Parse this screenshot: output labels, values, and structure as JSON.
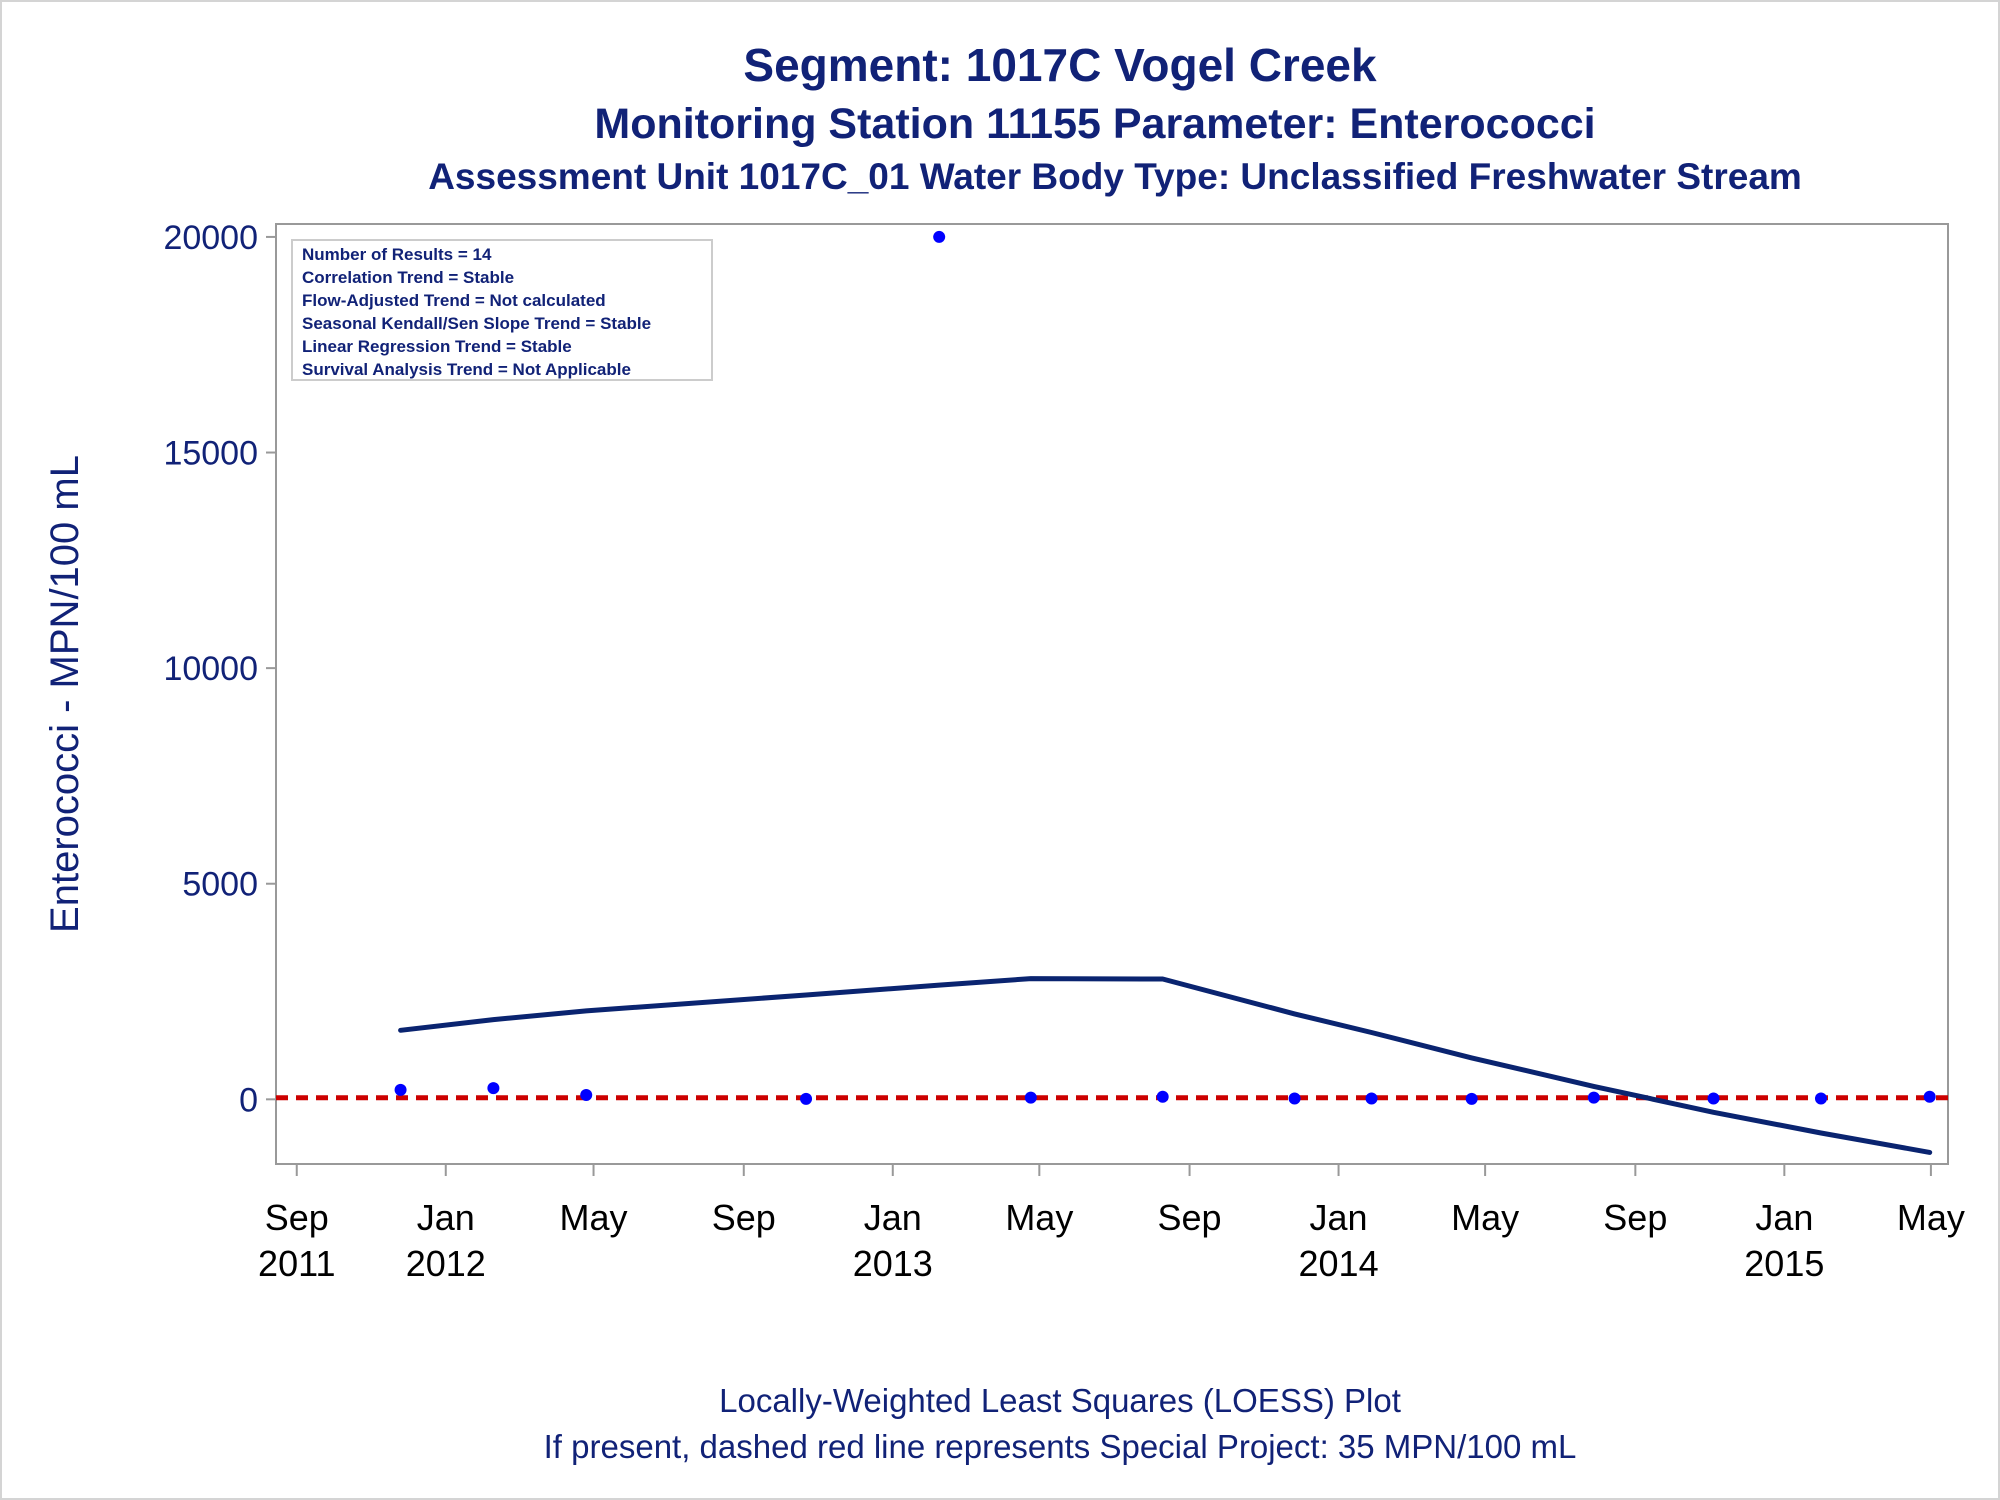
{
  "title": "Segment: 1017C  Vogel Creek",
  "subtitle": "Monitoring Station 11155 Parameter: Enterococci",
  "subtitle2": "Assessment Unit 1017C_01   Water Body Type: Unclassified Freshwater Stream",
  "stats": [
    "Number of Results = 14",
    "Correlation Trend = Stable",
    "Flow-Adjusted Trend = Not calculated",
    "Seasonal Kendall/Sen Slope Trend = Stable",
    "Linear Regression Trend = Stable",
    "Survival Analysis Trend = Not Applicable"
  ],
  "footer": {
    "line1": "Locally-Weighted Least Squares (LOESS) Plot",
    "line2": "If present, dashed red line represents Special Project: 35 MPN/100 mL"
  },
  "chart_data": {
    "type": "scatter",
    "ylabel": "Enterococci - MPN/100 mL",
    "ylim": [
      -1500,
      20300
    ],
    "yticks": [
      0,
      5000,
      10000,
      15000,
      20000
    ],
    "xlim": [
      "2011-08-15",
      "2015-05-15"
    ],
    "xticks": [
      {
        "date": "2011-09-01",
        "month": "Sep",
        "year": "2011"
      },
      {
        "date": "2012-01-01",
        "month": "Jan",
        "year": "2012"
      },
      {
        "date": "2012-05-01",
        "month": "May",
        "year": ""
      },
      {
        "date": "2012-09-01",
        "month": "Sep",
        "year": ""
      },
      {
        "date": "2013-01-01",
        "month": "Jan",
        "year": "2013"
      },
      {
        "date": "2013-05-01",
        "month": "May",
        "year": ""
      },
      {
        "date": "2013-09-01",
        "month": "Sep",
        "year": ""
      },
      {
        "date": "2014-01-01",
        "month": "Jan",
        "year": "2014"
      },
      {
        "date": "2014-05-01",
        "month": "May",
        "year": ""
      },
      {
        "date": "2014-09-01",
        "month": "Sep",
        "year": ""
      },
      {
        "date": "2015-01-01",
        "month": "Jan",
        "year": "2015"
      },
      {
        "date": "2015-05-01",
        "month": "May",
        "year": ""
      }
    ],
    "points": [
      {
        "x": "2011-11-25",
        "y": 220
      },
      {
        "x": "2012-02-09",
        "y": 260
      },
      {
        "x": "2012-04-25",
        "y": 100
      },
      {
        "x": "2012-10-22",
        "y": 10
      },
      {
        "x": "2013-02-08",
        "y": 20000
      },
      {
        "x": "2013-04-24",
        "y": 40
      },
      {
        "x": "2013-08-10",
        "y": 60
      },
      {
        "x": "2013-11-26",
        "y": 20
      },
      {
        "x": "2014-01-28",
        "y": 20
      },
      {
        "x": "2014-04-20",
        "y": 10
      },
      {
        "x": "2014-07-29",
        "y": 40
      },
      {
        "x": "2014-11-04",
        "y": 20
      },
      {
        "x": "2015-01-31",
        "y": 20
      },
      {
        "x": "2015-04-30",
        "y": 60
      }
    ],
    "loess": [
      {
        "x": "2011-11-25",
        "y": 1600
      },
      {
        "x": "2012-02-09",
        "y": 1850
      },
      {
        "x": "2012-04-25",
        "y": 2050
      },
      {
        "x": "2012-10-22",
        "y": 2420
      },
      {
        "x": "2013-02-08",
        "y": 2650
      },
      {
        "x": "2013-04-24",
        "y": 2800
      },
      {
        "x": "2013-08-10",
        "y": 2790
      },
      {
        "x": "2013-11-26",
        "y": 1980
      },
      {
        "x": "2014-01-28",
        "y": 1550
      },
      {
        "x": "2014-04-20",
        "y": 960
      },
      {
        "x": "2014-07-29",
        "y": 300
      },
      {
        "x": "2014-11-04",
        "y": -300
      },
      {
        "x": "2015-01-31",
        "y": -780
      },
      {
        "x": "2015-04-30",
        "y": -1230
      }
    ],
    "reference_line": {
      "y": 35,
      "style": "dashed",
      "color": "#cc0000"
    },
    "colors": {
      "points": "#0000ff",
      "loess": "#0a2470",
      "text": "#112277",
      "axis": "#999999"
    },
    "grid": false
  }
}
